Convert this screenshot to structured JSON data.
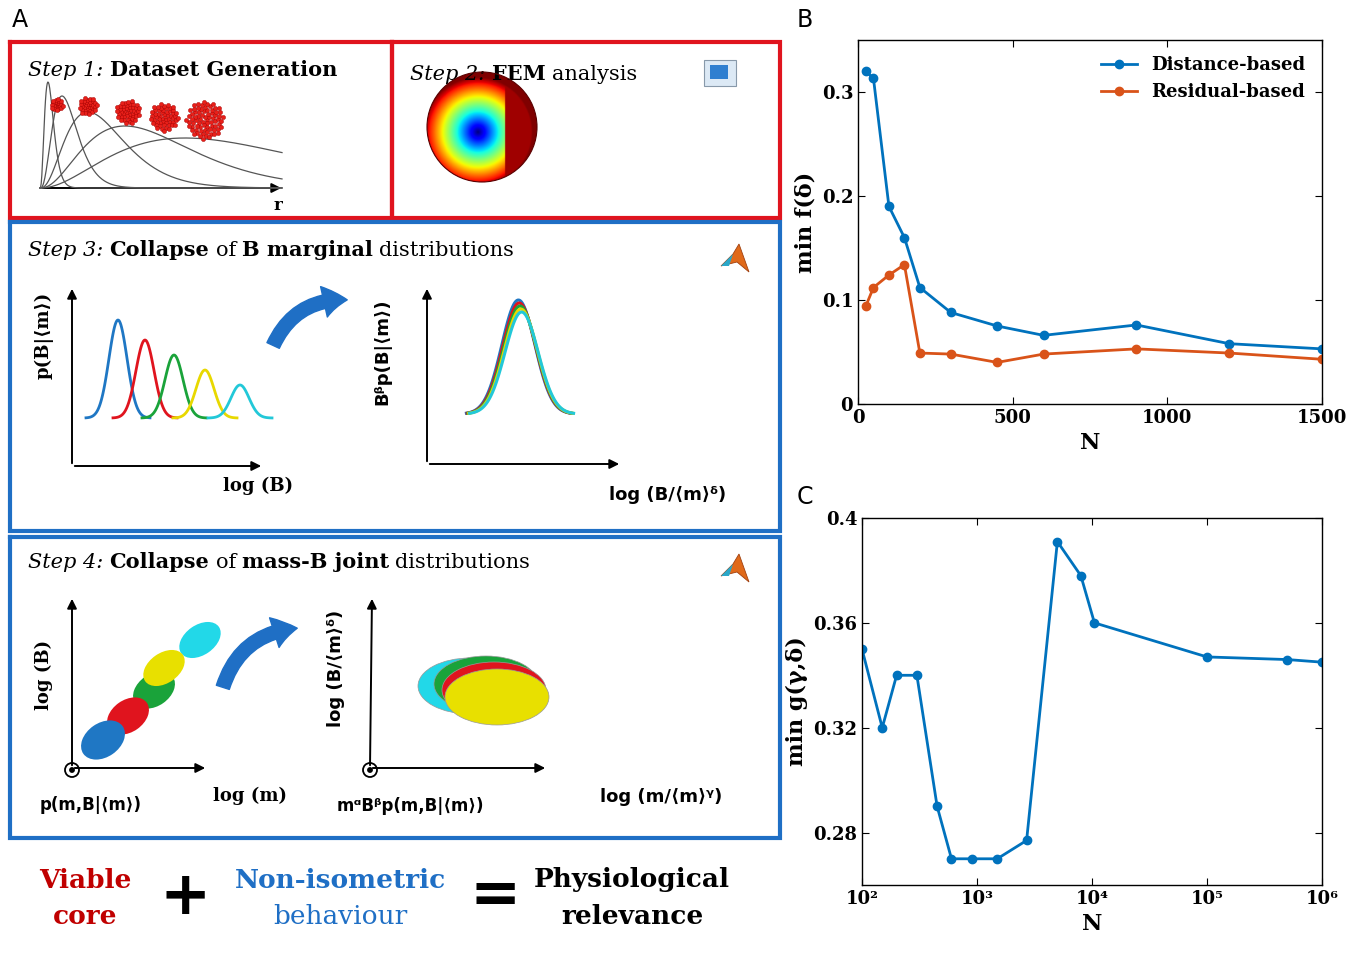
{
  "diagram": {
    "panel": "A",
    "steps": [
      {
        "runs": [
          {
            "text": "Step 1:",
            "style": "italic"
          },
          {
            "text": "Dataset Generation",
            "style": "bold"
          }
        ],
        "xlabel": "r"
      },
      {
        "runs": [
          {
            "text": "Step 2:",
            "style": "italic"
          },
          {
            "text": "FEM",
            "style": "bold"
          },
          {
            "text": "analysis",
            "style": "normal"
          }
        ]
      },
      {
        "runs": [
          {
            "text": "Step 3:",
            "style": "italic"
          },
          {
            "text": "Collapse",
            "style": "bold"
          },
          {
            "text": "of",
            "style": "normal"
          },
          {
            "text": "B marginal",
            "style": "bold"
          },
          {
            "text": "distributions",
            "style": "normal"
          }
        ],
        "left": {
          "ylabel": "p(B|⟨m⟩)",
          "xlabel": "log (B)"
        },
        "right": {
          "ylabel": "Bᵝp(B|⟨m⟩)",
          "xlabel": "log (B/⟨m⟩ᵟ)"
        }
      },
      {
        "runs": [
          {
            "text": "Step 4:",
            "style": "italic"
          },
          {
            "text": "Collapse",
            "style": "bold"
          },
          {
            "text": "of",
            "style": "normal"
          },
          {
            "text": "mass-B joint",
            "style": "bold"
          },
          {
            "text": "distributions",
            "style": "normal"
          }
        ],
        "left": {
          "ylabel": "log (B)",
          "xlabel": "log (m)",
          "zlabel": "p(m,B|⟨m⟩)"
        },
        "right": {
          "ylabel": "log (B/⟨m⟩ᵟ)",
          "xlabel": "log (m/⟨m⟩ᵞ)",
          "zlabel": "mᵅBᵝp(m,B|⟨m⟩)"
        }
      }
    ],
    "conclusion": [
      {
        "lines": [
          {
            "text": "Viable",
            "style": "bold"
          },
          {
            "text": "core",
            "style": "bold"
          }
        ],
        "color": "#c00000"
      },
      {
        "lines": [
          {
            "text": "+",
            "style": "bold"
          }
        ],
        "color": "#000000"
      },
      {
        "lines": [
          {
            "text": "Non-isometric",
            "style": "bold"
          },
          {
            "text": "behaviour",
            "style": "normal"
          }
        ],
        "color": "#1f6fc5"
      },
      {
        "lines": [
          {
            "text": "=",
            "style": "bold"
          }
        ],
        "color": "#000000"
      },
      {
        "lines": [
          {
            "text": "Physiological",
            "style": "bold"
          },
          {
            "text": "relevance",
            "style": "bold"
          }
        ],
        "color": "#000000"
      }
    ]
  },
  "chart_data": [
    {
      "type": "line",
      "panel": "B",
      "x_label": "N",
      "y_label": "min f(δ)",
      "x": [
        25,
        50,
        100,
        150,
        200,
        300,
        450,
        600,
        900,
        1200,
        1500
      ],
      "series": [
        {
          "name": "Distance-based",
          "color": "#0072bd",
          "marker": "circle",
          "line_style": "solid",
          "values": [
            0.32,
            0.313,
            0.19,
            0.16,
            0.112,
            0.088,
            0.075,
            0.066,
            0.076,
            0.058,
            0.053
          ]
        },
        {
          "name": "Residual-based",
          "color": "#d95319",
          "marker": "circle",
          "line_style": "solid",
          "values": [
            0.094,
            0.112,
            0.124,
            0.134,
            0.049,
            0.048,
            0.04,
            0.048,
            0.053,
            0.049,
            0.043
          ]
        }
      ],
      "xlim": [
        0,
        1500
      ],
      "xticks": [
        0,
        500,
        1000,
        1500
      ],
      "ylim": [
        0,
        0.35
      ],
      "yticks": [
        0,
        0.1,
        0.2,
        0.3
      ],
      "legend": "upper right",
      "grid": false
    },
    {
      "type": "line",
      "panel": "C",
      "x_label": "N",
      "y_label": "min g(γ,δ)",
      "x": [
        100,
        150,
        200,
        300,
        450,
        600,
        900,
        1500,
        2700,
        5000,
        8000,
        10500,
        100000,
        500000,
        1000000
      ],
      "series": [
        {
          "color": "#0072bd",
          "marker": "circle",
          "line_style": "solid",
          "values": [
            0.35,
            0.32,
            0.34,
            0.34,
            0.29,
            0.27,
            0.27,
            0.27,
            0.277,
            0.391,
            0.378,
            0.36,
            0.347,
            0.346,
            0.345
          ]
        }
      ],
      "log": "x",
      "xlim": [
        100,
        1000000
      ],
      "xticks": [
        {
          "value": 100,
          "label": "10²"
        },
        {
          "value": 1000,
          "label": "10³"
        },
        {
          "value": 10000,
          "label": "10⁴"
        },
        {
          "value": 100000,
          "label": "10⁵"
        },
        {
          "value": 1000000,
          "label": "10⁶"
        }
      ],
      "ylim": [
        0.26,
        0.4
      ],
      "yticks": [
        0.28,
        0.32,
        0.36,
        0.4
      ],
      "grid": false
    }
  ]
}
